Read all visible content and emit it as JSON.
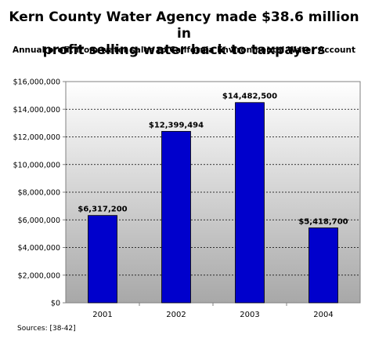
{
  "chart_data": {
    "type": "bar",
    "title": "Kern County Water Agency made $38.6 million in profit selling water back to taxpayers",
    "title_lines": [
      "Kern County Water Agency made $38.6 million in",
      "profit selling water back to taxpayers"
    ],
    "subtitle": "Annual profit from water sales to California Environmental Water Account",
    "categories": [
      "2001",
      "2002",
      "2003",
      "2004"
    ],
    "values": [
      6317200,
      12399494,
      14482500,
      5418700
    ],
    "data_labels": [
      "$6,317,200",
      "$12,399,494",
      "$14,482,500",
      "$5,418,700"
    ],
    "ylim": [
      0,
      16000000
    ],
    "y_ticks": [
      0,
      2000000,
      4000000,
      6000000,
      8000000,
      10000000,
      12000000,
      14000000,
      16000000
    ],
    "y_tick_labels": [
      "$0",
      "$2,000,000",
      "$4,000,000",
      "$6,000,000",
      "$8,000,000",
      "$10,000,000",
      "$12,000,000",
      "$14,000,000",
      "$16,000,000"
    ],
    "xlabel": "",
    "ylabel": "",
    "grid": "horizontal dashed",
    "legend": "none",
    "bar_color": "#0000cc",
    "plot_background": "gradient white to gray"
  },
  "footer": {
    "sources": "Sources: [38-42]"
  }
}
